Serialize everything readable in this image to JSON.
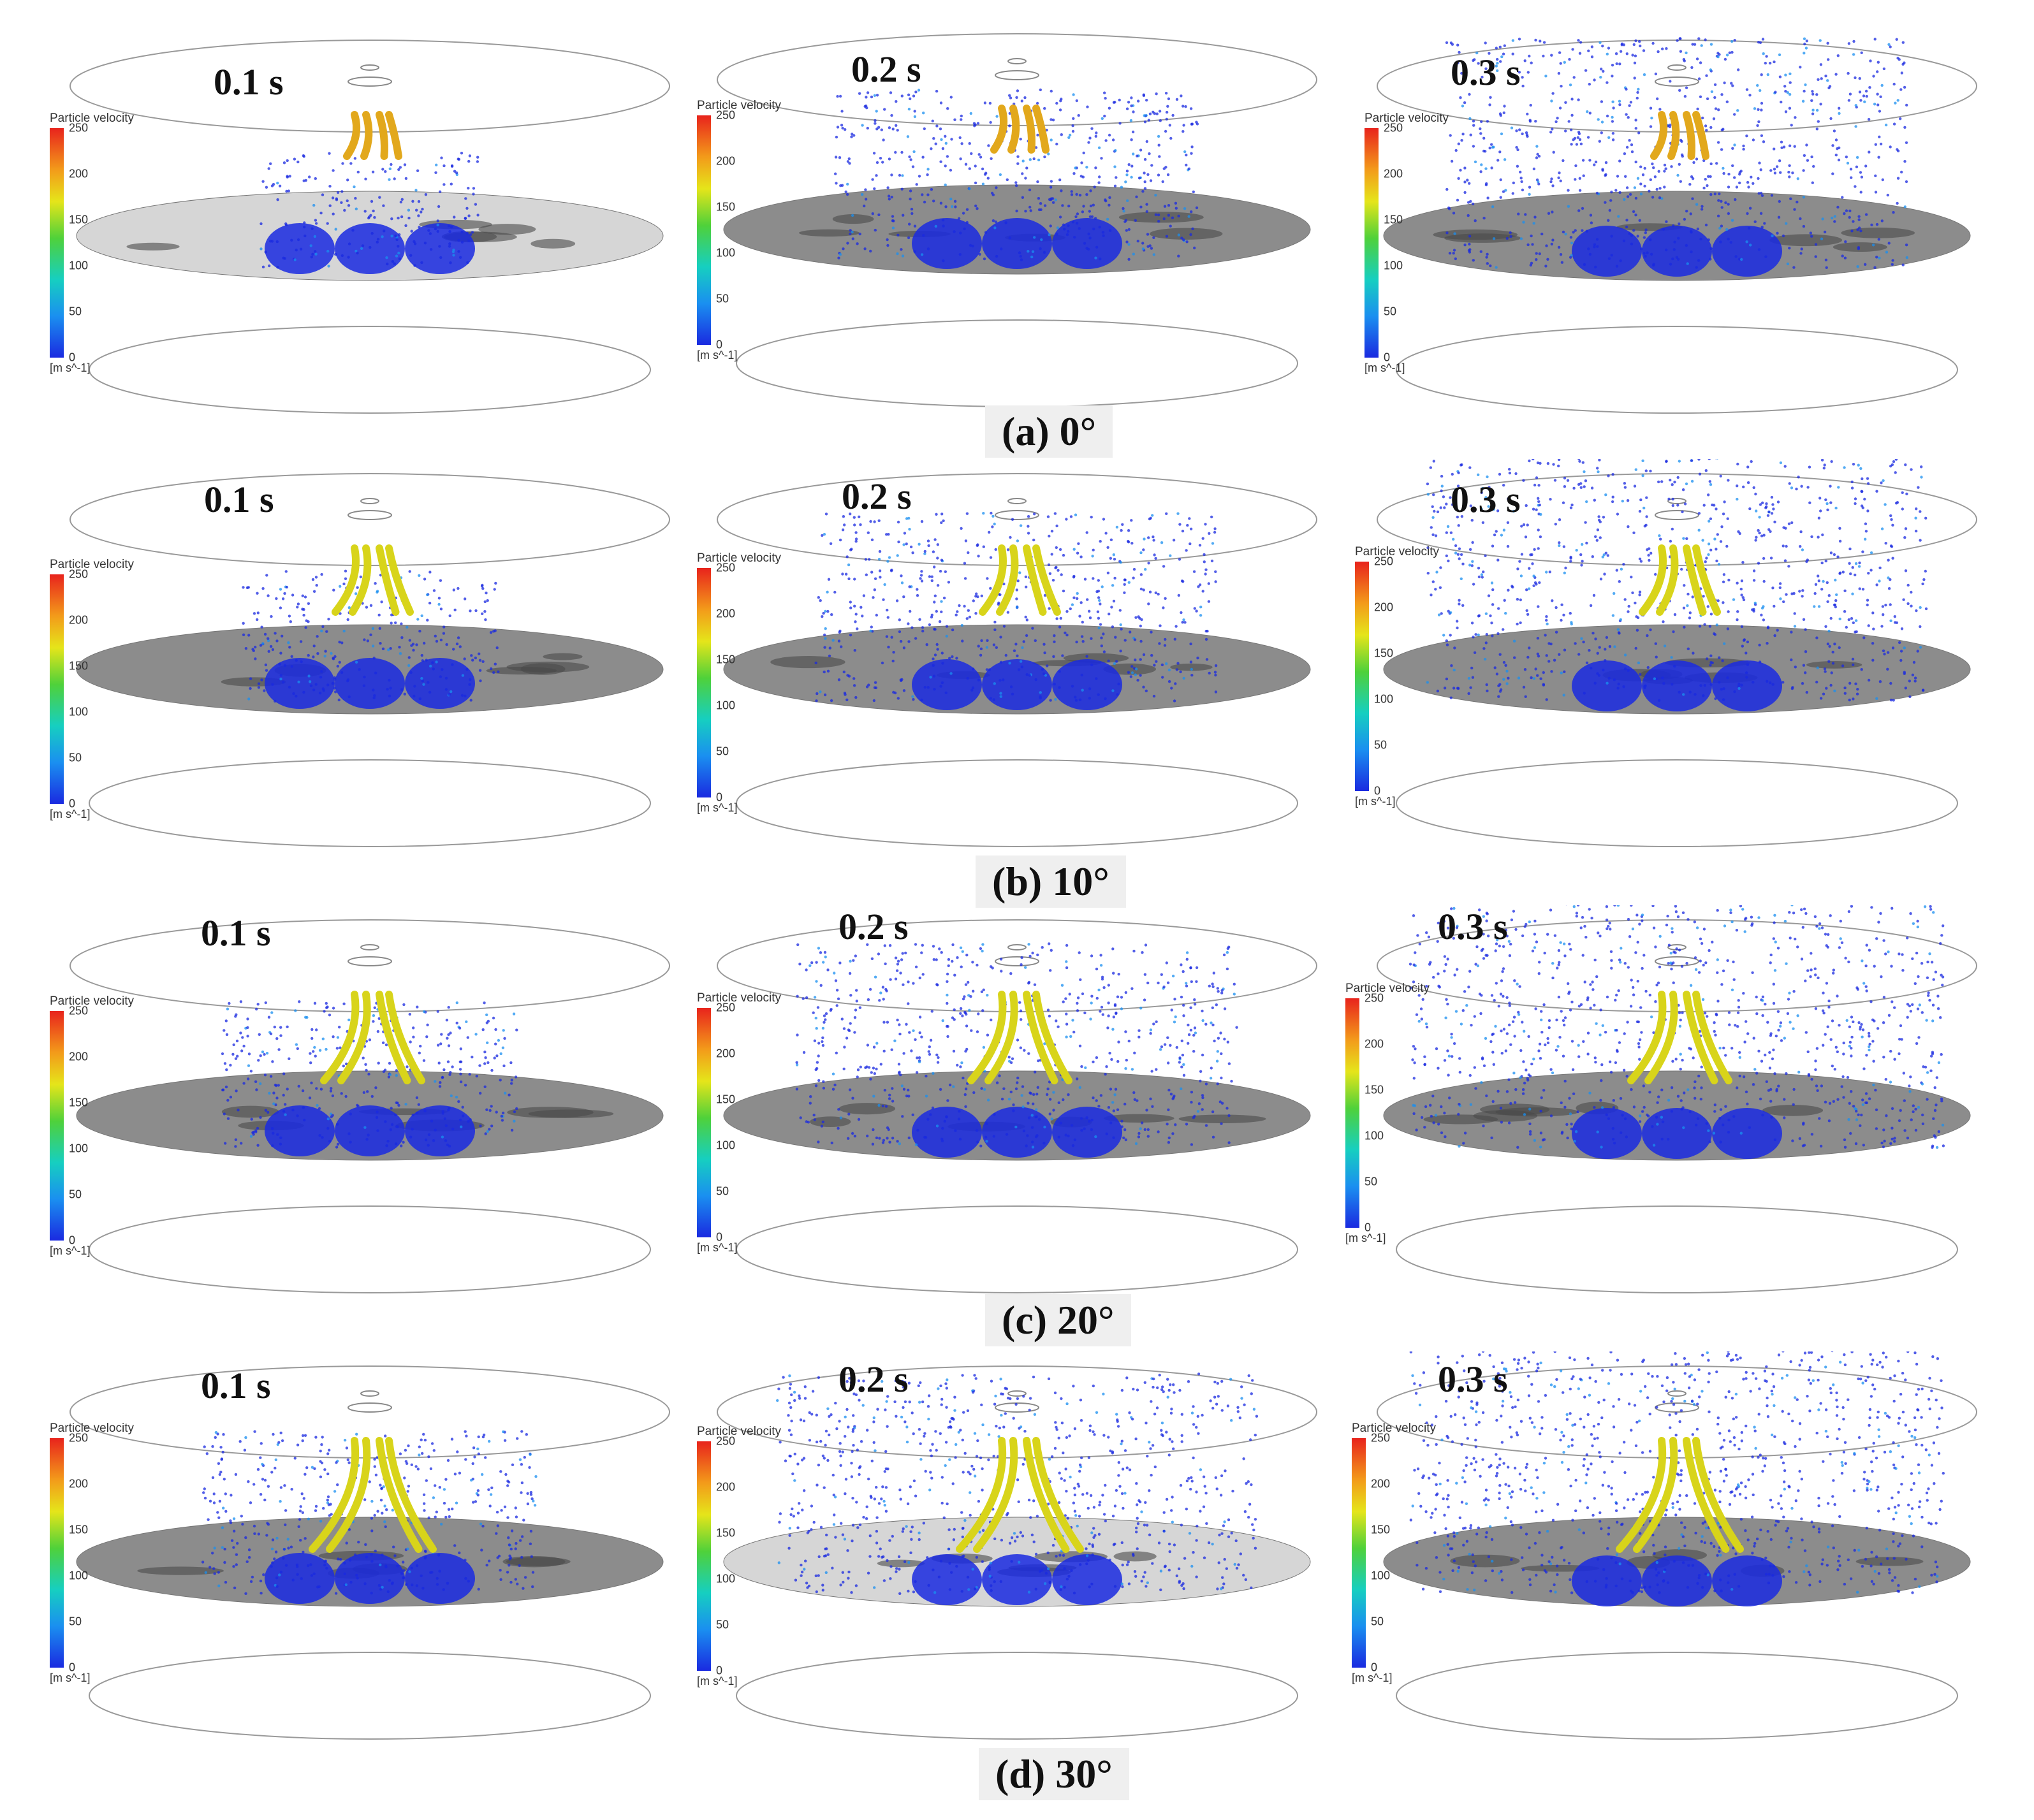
{
  "colorbar": {
    "title": "Particle velocity",
    "unit": "[m s^-1]",
    "ticks": [
      "250",
      "200",
      "150",
      "100",
      "50",
      "0"
    ],
    "max": 250,
    "min": 0
  },
  "rows": [
    {
      "caption": "(a) 0°",
      "angle_deg": 0,
      "times": [
        "0.1 s",
        "0.2 s",
        "0.3 s"
      ]
    },
    {
      "caption": "(b) 10°",
      "angle_deg": 10,
      "times": [
        "0.1 s",
        "0.2 s",
        "0.3 s"
      ]
    },
    {
      "caption": "(c) 20°",
      "angle_deg": 20,
      "times": [
        "0.1 s",
        "0.2 s",
        "0.3 s"
      ]
    },
    {
      "caption": "(d) 30°",
      "angle_deg": 30,
      "times": [
        "0.1 s",
        "0.2 s",
        "0.3 s"
      ]
    }
  ],
  "colors": {
    "particle_low": "#1a2ae0",
    "particle_mid": "#1a8ff0",
    "jet": "#d8d41a",
    "ground": "#8c8c8c",
    "ground_light": "#d6d6d6"
  }
}
